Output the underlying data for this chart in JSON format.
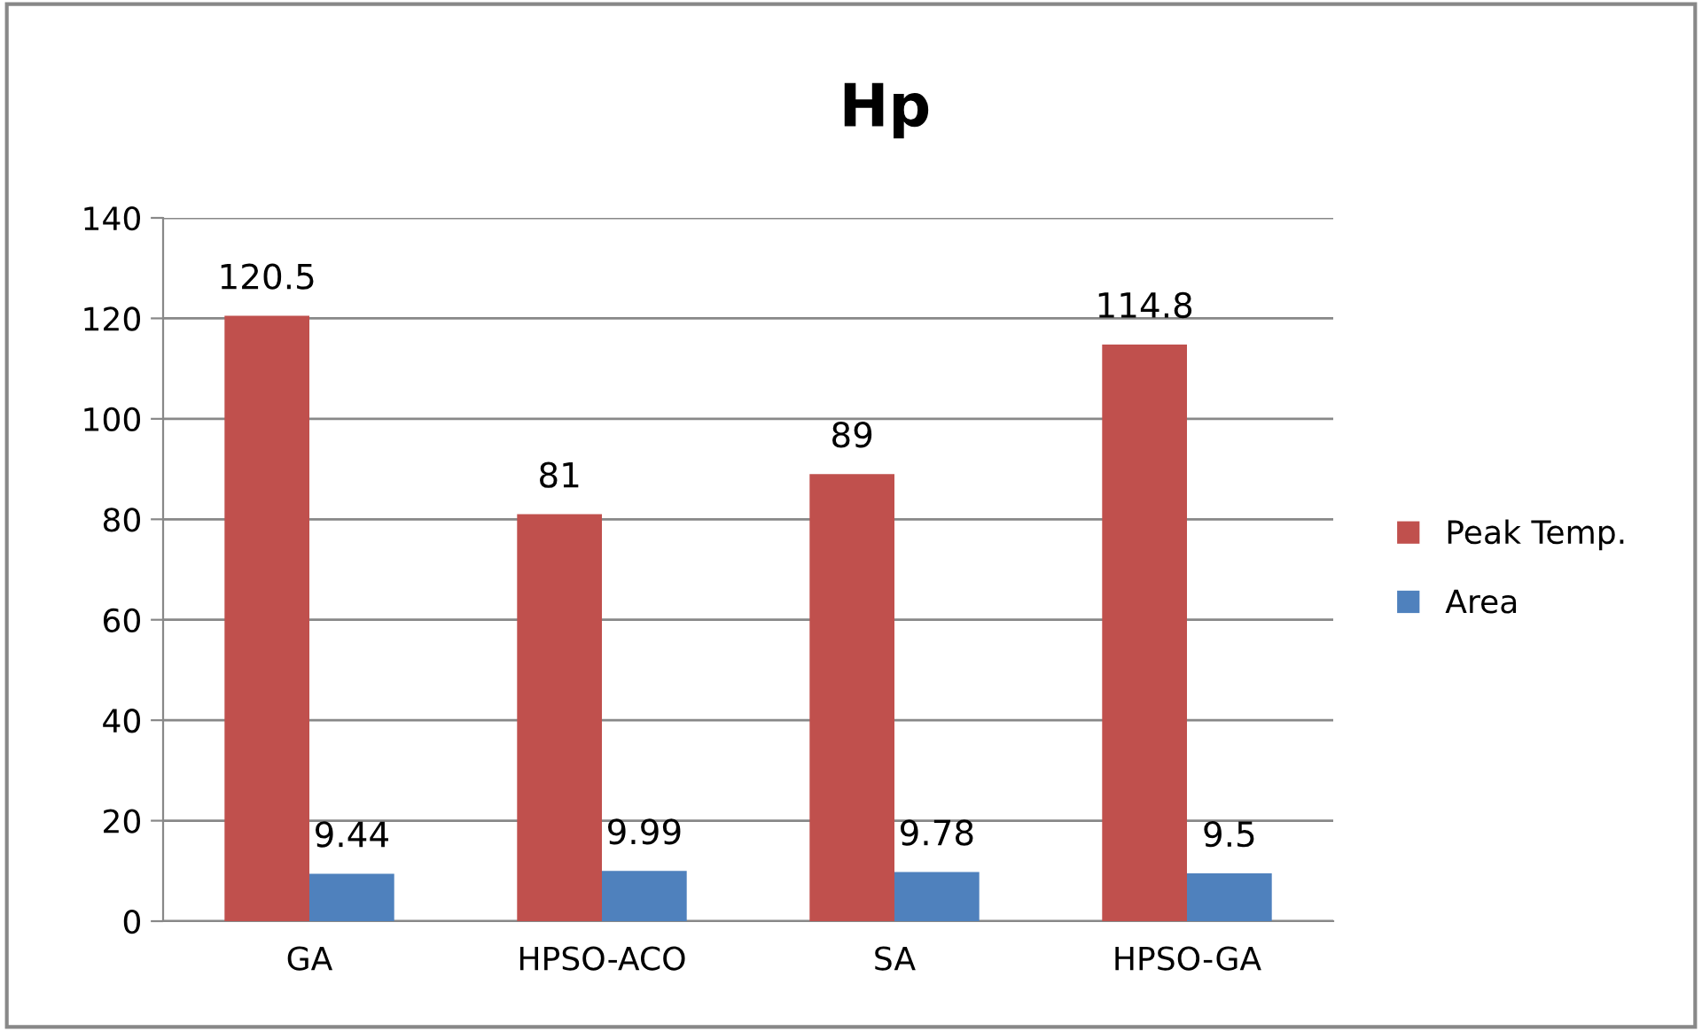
{
  "chart_data": {
    "type": "bar",
    "title": "Hp",
    "categories": [
      "GA",
      "HPSO-ACO",
      "SA",
      "HPSO-GA"
    ],
    "series": [
      {
        "name": "Peak Temp.",
        "color": "#c0504d",
        "values": [
          120.5,
          81,
          89,
          114.8
        ]
      },
      {
        "name": "Area",
        "color": "#4f81bd",
        "values": [
          9.44,
          9.99,
          9.78,
          9.5
        ]
      }
    ],
    "ylim": [
      0,
      140
    ],
    "yticks": [
      0,
      20,
      40,
      60,
      80,
      100,
      120,
      140
    ],
    "grid": "y",
    "legend": "right",
    "data_labels": true
  }
}
